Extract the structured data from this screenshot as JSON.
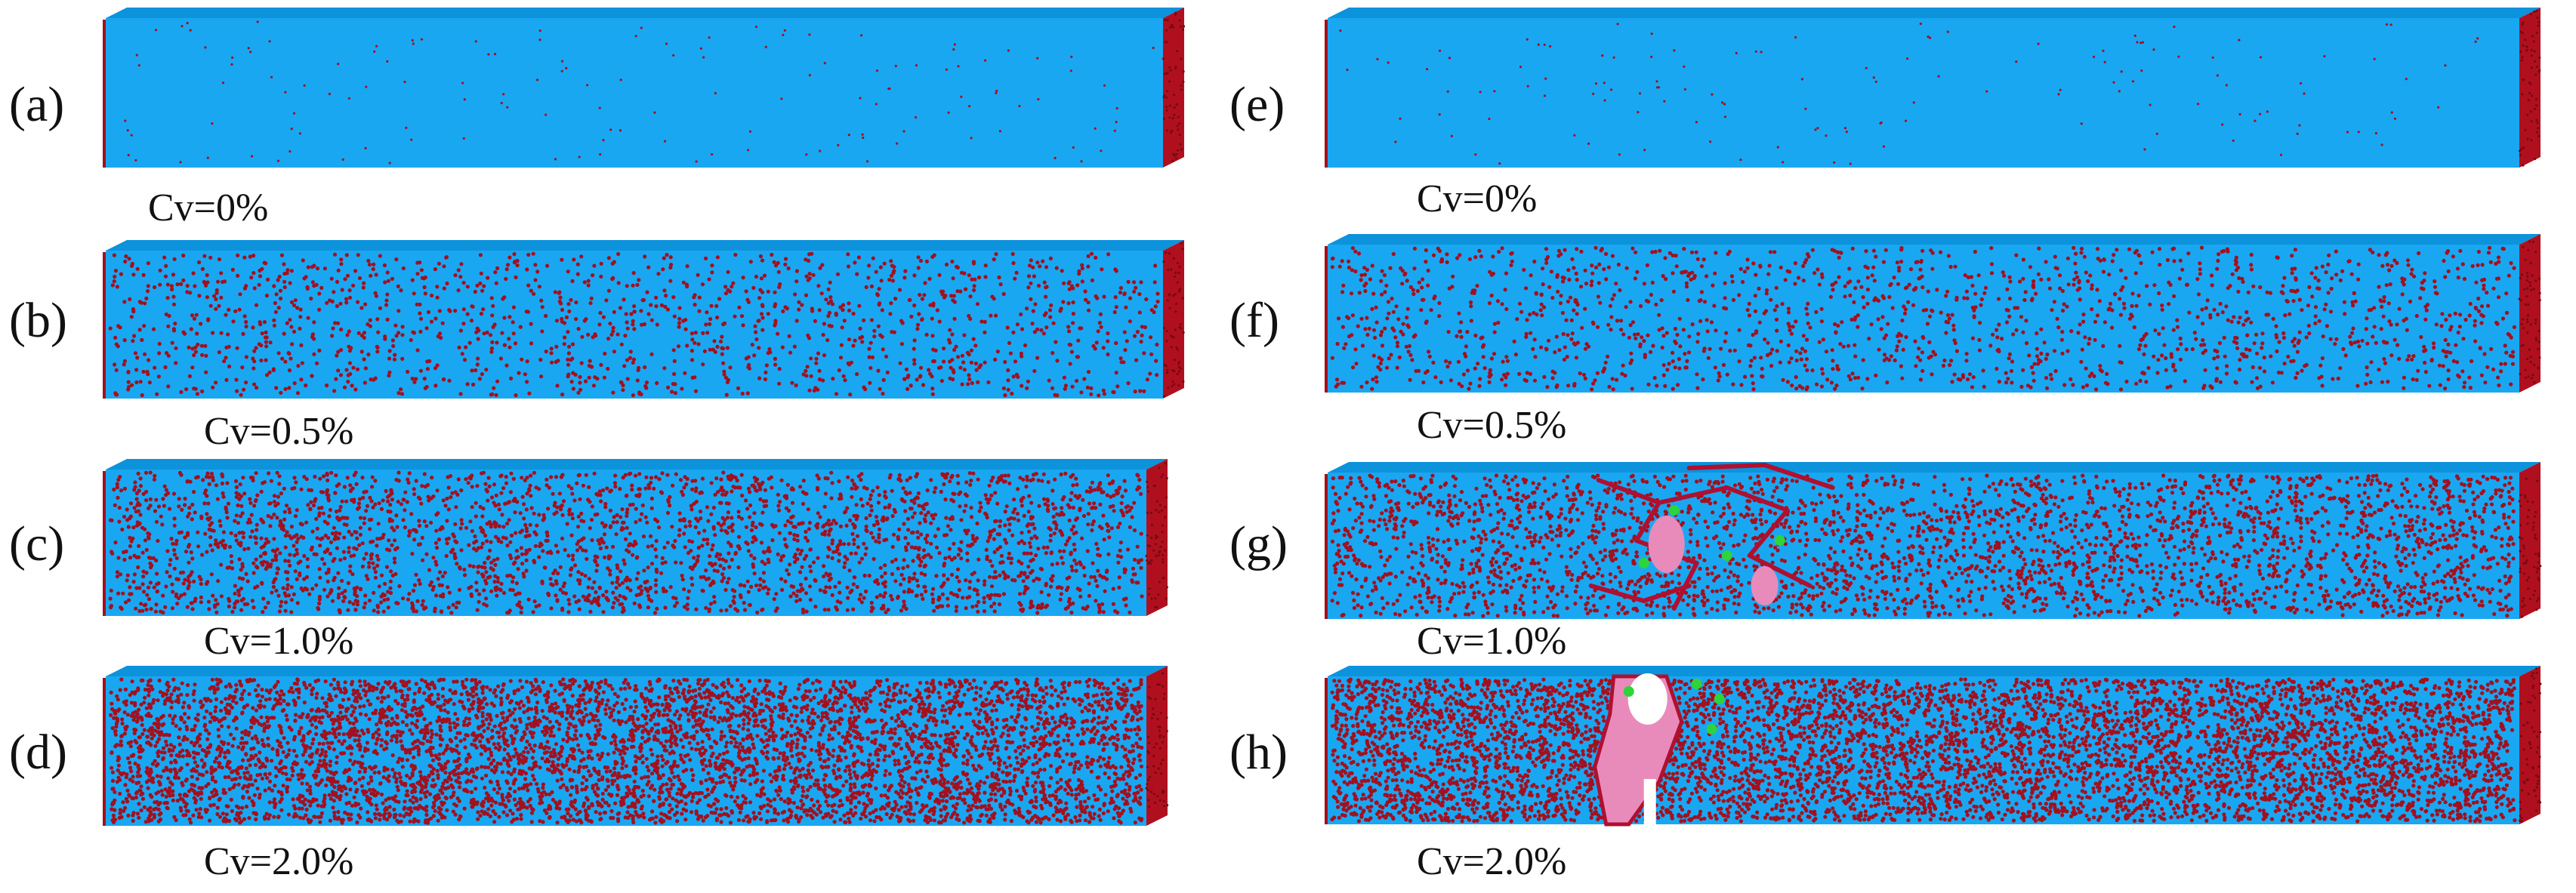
{
  "colors": {
    "matrix": "#1aa7f2",
    "matrix_shade": "#0d92dc",
    "defect": "#a3101e",
    "end_face": "#b0101e",
    "crack": "#e88bbb",
    "crack_dark": "#b01030",
    "bond": "#2fd33a"
  },
  "panels": [
    {
      "label": "(a)",
      "cv": "Cv=0%",
      "density": 0.0,
      "damage": "none"
    },
    {
      "label": "(b)",
      "cv": "Cv=0.5%",
      "density": 0.5,
      "damage": "none"
    },
    {
      "label": "(c)",
      "cv": "Cv=1.0%",
      "density": 1.0,
      "damage": "none"
    },
    {
      "label": "(d)",
      "cv": "Cv=2.0%",
      "density": 2.0,
      "damage": "none"
    },
    {
      "label": "(e)",
      "cv": "Cv=0%",
      "density": 0.0,
      "damage": "none"
    },
    {
      "label": "(f)",
      "cv": "Cv=0.5%",
      "density": 0.5,
      "damage": "none"
    },
    {
      "label": "(g)",
      "cv": "Cv=1.0%",
      "density": 1.0,
      "damage": "cracking"
    },
    {
      "label": "(h)",
      "cv": "Cv=2.0%",
      "density": 2.0,
      "damage": "fracture"
    }
  ]
}
